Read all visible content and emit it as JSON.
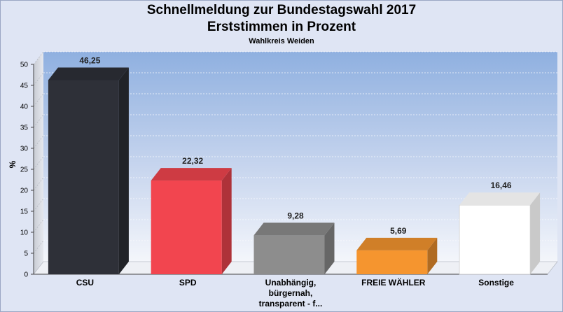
{
  "chart_data": {
    "type": "bar",
    "title": "Schnellmeldung zur Bundestagswahl 2017",
    "subtitle": "Erststimmen in Prozent",
    "subsubtitle": "Wahlkreis Weiden",
    "ylabel": "%",
    "xlabel": "",
    "ylim": [
      0,
      50
    ],
    "yticks": [
      0,
      5,
      10,
      15,
      20,
      25,
      30,
      35,
      40,
      45,
      50
    ],
    "grid": true,
    "categories": [
      [
        "CSU"
      ],
      [
        "SPD"
      ],
      [
        "Unabhängig,",
        "bürgernah,",
        "transparent - f..."
      ],
      [
        "FREIE WÄHLER"
      ],
      [
        "Sonstige"
      ]
    ],
    "values": [
      46.25,
      22.32,
      9.28,
      5.69,
      16.46
    ],
    "value_labels": [
      "46,25",
      "22,32",
      "9,28",
      "5,69",
      "16,46"
    ],
    "colors": [
      "#2e3038",
      "#f2454f",
      "#8d8d8d",
      "#f5952f",
      "#ffffff"
    ]
  }
}
